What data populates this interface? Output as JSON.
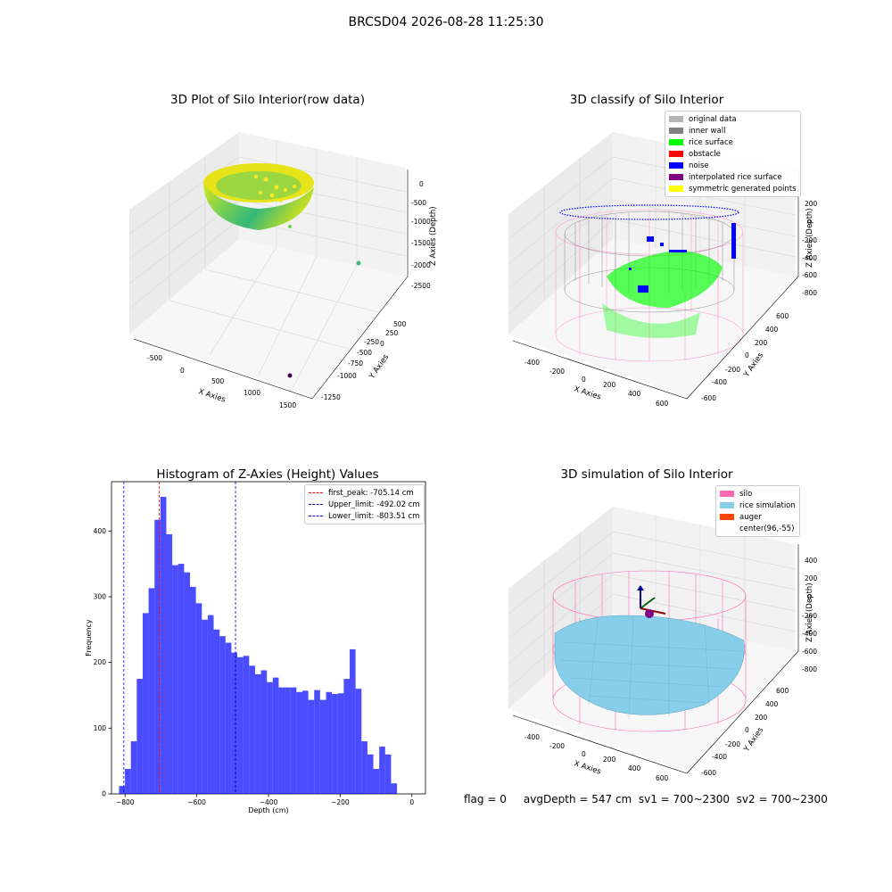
{
  "suptitle": "BRCSD04 2026-08-28 11:25:30",
  "footer_text": "flag = 0     avgDepth = 547 cm  sv1 = 700~2300  sv2 = 700~2300",
  "chart_data": [
    {
      "type": "scatter",
      "title": "3D Plot of Silo Interior(row data)",
      "xlabel": "X Axies",
      "ylabel": "Y Axies",
      "zlabel": "Z Axies (Depth)",
      "x_ticks": [
        "-500",
        "0",
        "500",
        "1000",
        "1500"
      ],
      "y_ticks": [
        "-1250",
        "-1000",
        "-750",
        "-500",
        "-250",
        "0",
        "250",
        "500"
      ],
      "z_ticks": [
        "-2500",
        "-2000",
        "-1500",
        "-1000",
        "-500",
        "0"
      ],
      "outliers": [
        {
          "x": 1500,
          "y": -1300,
          "z": -2400,
          "color": "#440154"
        },
        {
          "x": 1400,
          "y": 450,
          "z": -2000,
          "color": "#3cb878"
        }
      ]
    },
    {
      "type": "scatter",
      "title": "3D classify of Silo Interior",
      "xlabel": "X Axies",
      "ylabel": "Y Axies",
      "zlabel": "Z Axies (Depth)",
      "x_ticks": [
        "-400",
        "-200",
        "0",
        "200",
        "400",
        "600"
      ],
      "y_ticks": [
        "-600",
        "-400",
        "-200",
        "0",
        "200",
        "400",
        "600"
      ],
      "z_ticks": [
        "-800",
        "-600",
        "-400",
        "-200",
        "0",
        "200"
      ],
      "legend": [
        {
          "label": "original data",
          "color": "#b4b4b4"
        },
        {
          "label": "inner wall",
          "color": "#808080"
        },
        {
          "label": "rice surface",
          "color": "#00ff00"
        },
        {
          "label": "obstacle",
          "color": "#ff0000"
        },
        {
          "label": "noise",
          "color": "#0000ff"
        },
        {
          "label": "interpolated rice surface",
          "color": "#800080"
        },
        {
          "label": "symmetric generated points",
          "color": "#ffff00"
        }
      ]
    },
    {
      "type": "bar",
      "title": "Histogram of Z-Axies (Height) Values",
      "xlabel": "Depth (cm)",
      "ylabel": "Frequency",
      "xlim": [
        -838,
        38
      ],
      "ylim": [
        0,
        475
      ],
      "x_ticks": [
        -800,
        -600,
        -400,
        -200,
        0
      ],
      "y_ticks": [
        0,
        100,
        200,
        300,
        400
      ],
      "bin_start": -817,
      "bin_width": 16.5,
      "values": [
        12,
        38,
        80,
        175,
        275,
        313,
        417,
        452,
        395,
        348,
        350,
        337,
        315,
        290,
        265,
        272,
        250,
        240,
        230,
        215,
        208,
        210,
        195,
        182,
        188,
        170,
        177,
        162,
        162,
        162,
        155,
        157,
        143,
        158,
        143,
        155,
        152,
        153,
        175,
        220,
        160,
        80,
        60,
        38,
        72,
        60,
        16
      ],
      "color": "#0000ff",
      "vlines": [
        {
          "label": "first_peak: -705.14 cm",
          "x": -705.14,
          "color": "#ff0000"
        },
        {
          "label": "Upper_limit: -492.02 cm",
          "x": -492.02,
          "color": "#00008b"
        },
        {
          "label": "Lower_limit: -803.51 cm",
          "x": -803.51,
          "color": "#0000ff"
        }
      ]
    },
    {
      "type": "other",
      "title": "3D simulation of Silo Interior",
      "xlabel": "X Axies",
      "ylabel": "Y Axies",
      "zlabel": "Z Axies (Depth)",
      "x_ticks": [
        "-400",
        "-200",
        "0",
        "200",
        "400",
        "600"
      ],
      "y_ticks": [
        "-600",
        "-400",
        "-200",
        "0",
        "200",
        "400",
        "600"
      ],
      "z_ticks": [
        "-800",
        "-600",
        "-400",
        "-200",
        "0",
        "200",
        "400"
      ],
      "legend": [
        {
          "label": "silo",
          "color": "#ff69b4"
        },
        {
          "label": "rice simulation",
          "color": "#87ceeb"
        },
        {
          "label": "auger",
          "color": "#ff4500"
        },
        {
          "label": "center(96,-55)",
          "color": "#ffffff"
        }
      ]
    }
  ]
}
